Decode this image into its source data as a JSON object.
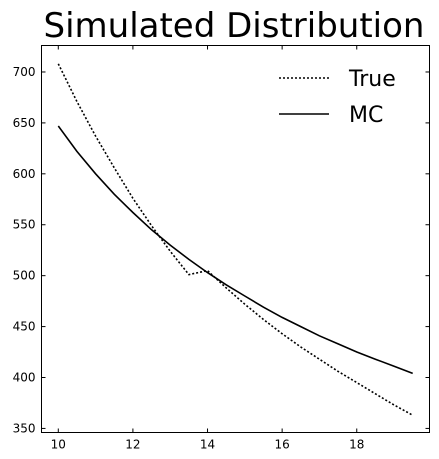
{
  "chart_data": {
    "type": "line",
    "title": "Simulated Distribution",
    "xlabel": "",
    "ylabel": "",
    "xlim": [
      9.55,
      19.95
    ],
    "ylim": [
      346,
      726
    ],
    "xticks": [
      10,
      12,
      14,
      16,
      18
    ],
    "yticks": [
      350,
      400,
      450,
      500,
      550,
      600,
      650,
      700
    ],
    "grid": false,
    "legend_position": "top-right",
    "x": [
      10,
      10.5,
      11,
      11.5,
      12,
      12.5,
      13,
      13.5,
      14,
      14.5,
      15,
      15.5,
      16,
      16.5,
      17,
      17.5,
      18,
      18.5,
      19,
      19.5
    ],
    "series": [
      {
        "name": "True",
        "style": "dotted",
        "color": "#000000",
        "values": [
          708,
          671,
          637,
          606,
          576,
          549,
          524,
          501,
          505,
          488,
          472,
          457,
          443,
          430,
          418,
          406,
          395,
          384,
          373,
          363
        ]
      },
      {
        "name": "MC",
        "style": "solid",
        "color": "#000000",
        "values": [
          647,
          622,
          600,
          580,
          562,
          545,
          530,
          516,
          503,
          491,
          480,
          469,
          459,
          450,
          441,
          433,
          425,
          418,
          411,
          404
        ]
      }
    ]
  }
}
